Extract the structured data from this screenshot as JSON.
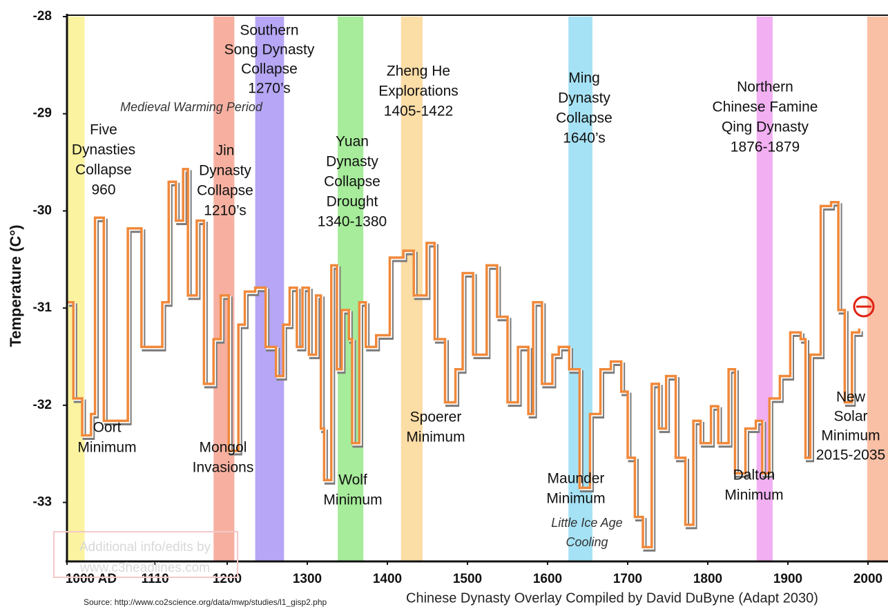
{
  "chart_data": {
    "type": "line",
    "y_label": "Temperature (C°)",
    "xlim": [
      1000,
      2025
    ],
    "ylim": [
      -33.6,
      -28
    ],
    "xticks": [
      {
        "value": 1000,
        "label": "1000 AD"
      },
      1110,
      1200,
      1300,
      1400,
      1500,
      1600,
      1700,
      1800,
      1900,
      2000
    ],
    "yticks": [
      -28,
      -29,
      -30,
      -31,
      -32,
      -33
    ],
    "x": [
      1000,
      1008,
      1019,
      1030,
      1035,
      1046,
      1076,
      1093,
      1119,
      1127,
      1136,
      1145,
      1151,
      1162,
      1171,
      1183,
      1192,
      1202,
      1214,
      1222,
      1235,
      1248,
      1261,
      1270,
      1278,
      1287,
      1294,
      1302,
      1311,
      1317,
      1321,
      1330,
      1337,
      1343,
      1352,
      1356,
      1365,
      1373,
      1386,
      1403,
      1420,
      1433,
      1449,
      1459,
      1472,
      1485,
      1494,
      1507,
      1524,
      1537,
      1550,
      1563,
      1576,
      1582,
      1593,
      1606,
      1614,
      1627,
      1640,
      1653,
      1666,
      1679,
      1692,
      1700,
      1709,
      1719,
      1730,
      1739,
      1748,
      1760,
      1772,
      1782,
      1791,
      1804,
      1813,
      1826,
      1834,
      1847,
      1860,
      1868,
      1877,
      1890,
      1903,
      1916,
      1922,
      1928,
      1941,
      1954,
      1963,
      1971,
      1980,
      1989
    ],
    "series": [
      {
        "name": "Temperature",
        "color": "#f0883a",
        "values": [
          -30.94,
          -31.93,
          -32.31,
          -32.09,
          -30.07,
          -32.16,
          -30.18,
          -31.4,
          -30.94,
          -29.7,
          -30.1,
          -29.57,
          -30.87,
          -30.1,
          -31.78,
          -31.32,
          -30.87,
          -32.47,
          -31.17,
          -30.83,
          -30.79,
          -31.4,
          -31.7,
          -31.17,
          -30.79,
          -31.4,
          -30.79,
          -31.48,
          -30.87,
          -32.24,
          -32.77,
          -30.56,
          -31.63,
          -31.02,
          -31.32,
          -32.39,
          -30.94,
          -31.4,
          -31.28,
          -30.48,
          -30.41,
          -30.87,
          -30.33,
          -31.32,
          -31.97,
          -31.63,
          -30.64,
          -31.48,
          -30.56,
          -31.09,
          -31.97,
          -31.4,
          -32.09,
          -30.94,
          -31.78,
          -31.48,
          -31.4,
          -31.63,
          -32.85,
          -32.09,
          -31.63,
          -31.55,
          -31.86,
          -32.54,
          -33.15,
          -33.46,
          -31.78,
          -32.24,
          -31.7,
          -32.54,
          -33.23,
          -32.16,
          -32.39,
          -32.01,
          -32.39,
          -31.63,
          -32.7,
          -32.24,
          -32.16,
          -32.7,
          -31.93,
          -31.7,
          -31.25,
          -31.32,
          -32.54,
          -31.48,
          -29.95,
          -29.91,
          -31.02,
          -31.97,
          -31.25,
          -31.21
        ]
      }
    ],
    "bands": [
      {
        "start": 1000,
        "end": 1022,
        "color": "#fbf3a0"
      },
      {
        "start": 1183,
        "end": 1209,
        "color": "#f7b0a0"
      },
      {
        "start": 1235,
        "end": 1271,
        "color": "#b6a6f5"
      },
      {
        "start": 1338,
        "end": 1370,
        "color": "#a6ec9a"
      },
      {
        "start": 1417,
        "end": 1444,
        "color": "#fbdda6"
      },
      {
        "start": 1626,
        "end": 1656,
        "color": "#a6e2f5"
      },
      {
        "start": 1861,
        "end": 1881,
        "color": "#f2b0f2"
      },
      {
        "start": 1999,
        "end": 2025,
        "color": "#f9c0a6"
      }
    ],
    "annotations": [
      {
        "lines": [
          "Southern",
          "Song Dynasty",
          "Collapse",
          "1270’s"
        ]
      },
      {
        "lines": [
          "Medieval Warming Period"
        ]
      },
      {
        "lines": [
          "Five",
          "Dynasties",
          "Collapse",
          "960"
        ]
      },
      {
        "lines": [
          "Jin",
          "Dynasty",
          "Collapse",
          "1210’s"
        ]
      },
      {
        "lines": [
          "Yuan",
          "Dynasty",
          "Collapse",
          "Drought",
          "1340-1380"
        ]
      },
      {
        "lines": [
          "Zheng He",
          "Explorations",
          "1405-1422"
        ]
      },
      {
        "lines": [
          "Ming",
          "Dynasty",
          "Collapse",
          "1640’s"
        ]
      },
      {
        "lines": [
          "Northern",
          "Chinese Famine",
          "Qing Dynasty",
          "1876-1879"
        ]
      },
      {
        "lines": [
          "Oort",
          "Minimum"
        ]
      },
      {
        "lines": [
          "Mongol",
          "Invasions"
        ]
      },
      {
        "lines": [
          "Wolf",
          "Minimum"
        ]
      },
      {
        "lines": [
          "Spoerer",
          "Minimum"
        ]
      },
      {
        "lines": [
          "Maunder",
          "Minimum"
        ]
      },
      {
        "lines": [
          "Little Ice Age",
          "Cooling"
        ]
      },
      {
        "lines": [
          "Dalton",
          "Minimum"
        ]
      },
      {
        "lines": [
          "New",
          "Solar",
          "Minimum",
          "2015-2035"
        ]
      }
    ],
    "watermark": [
      "Additional info/edits by",
      "www.c3headlines.com"
    ],
    "source": "Source: http://www.co2science.org/data/mwp/studies/l1_gisp2.php",
    "credit": "Chinese Dynasty Overlay Compiled by David DuByne (Adapt 2030)"
  }
}
